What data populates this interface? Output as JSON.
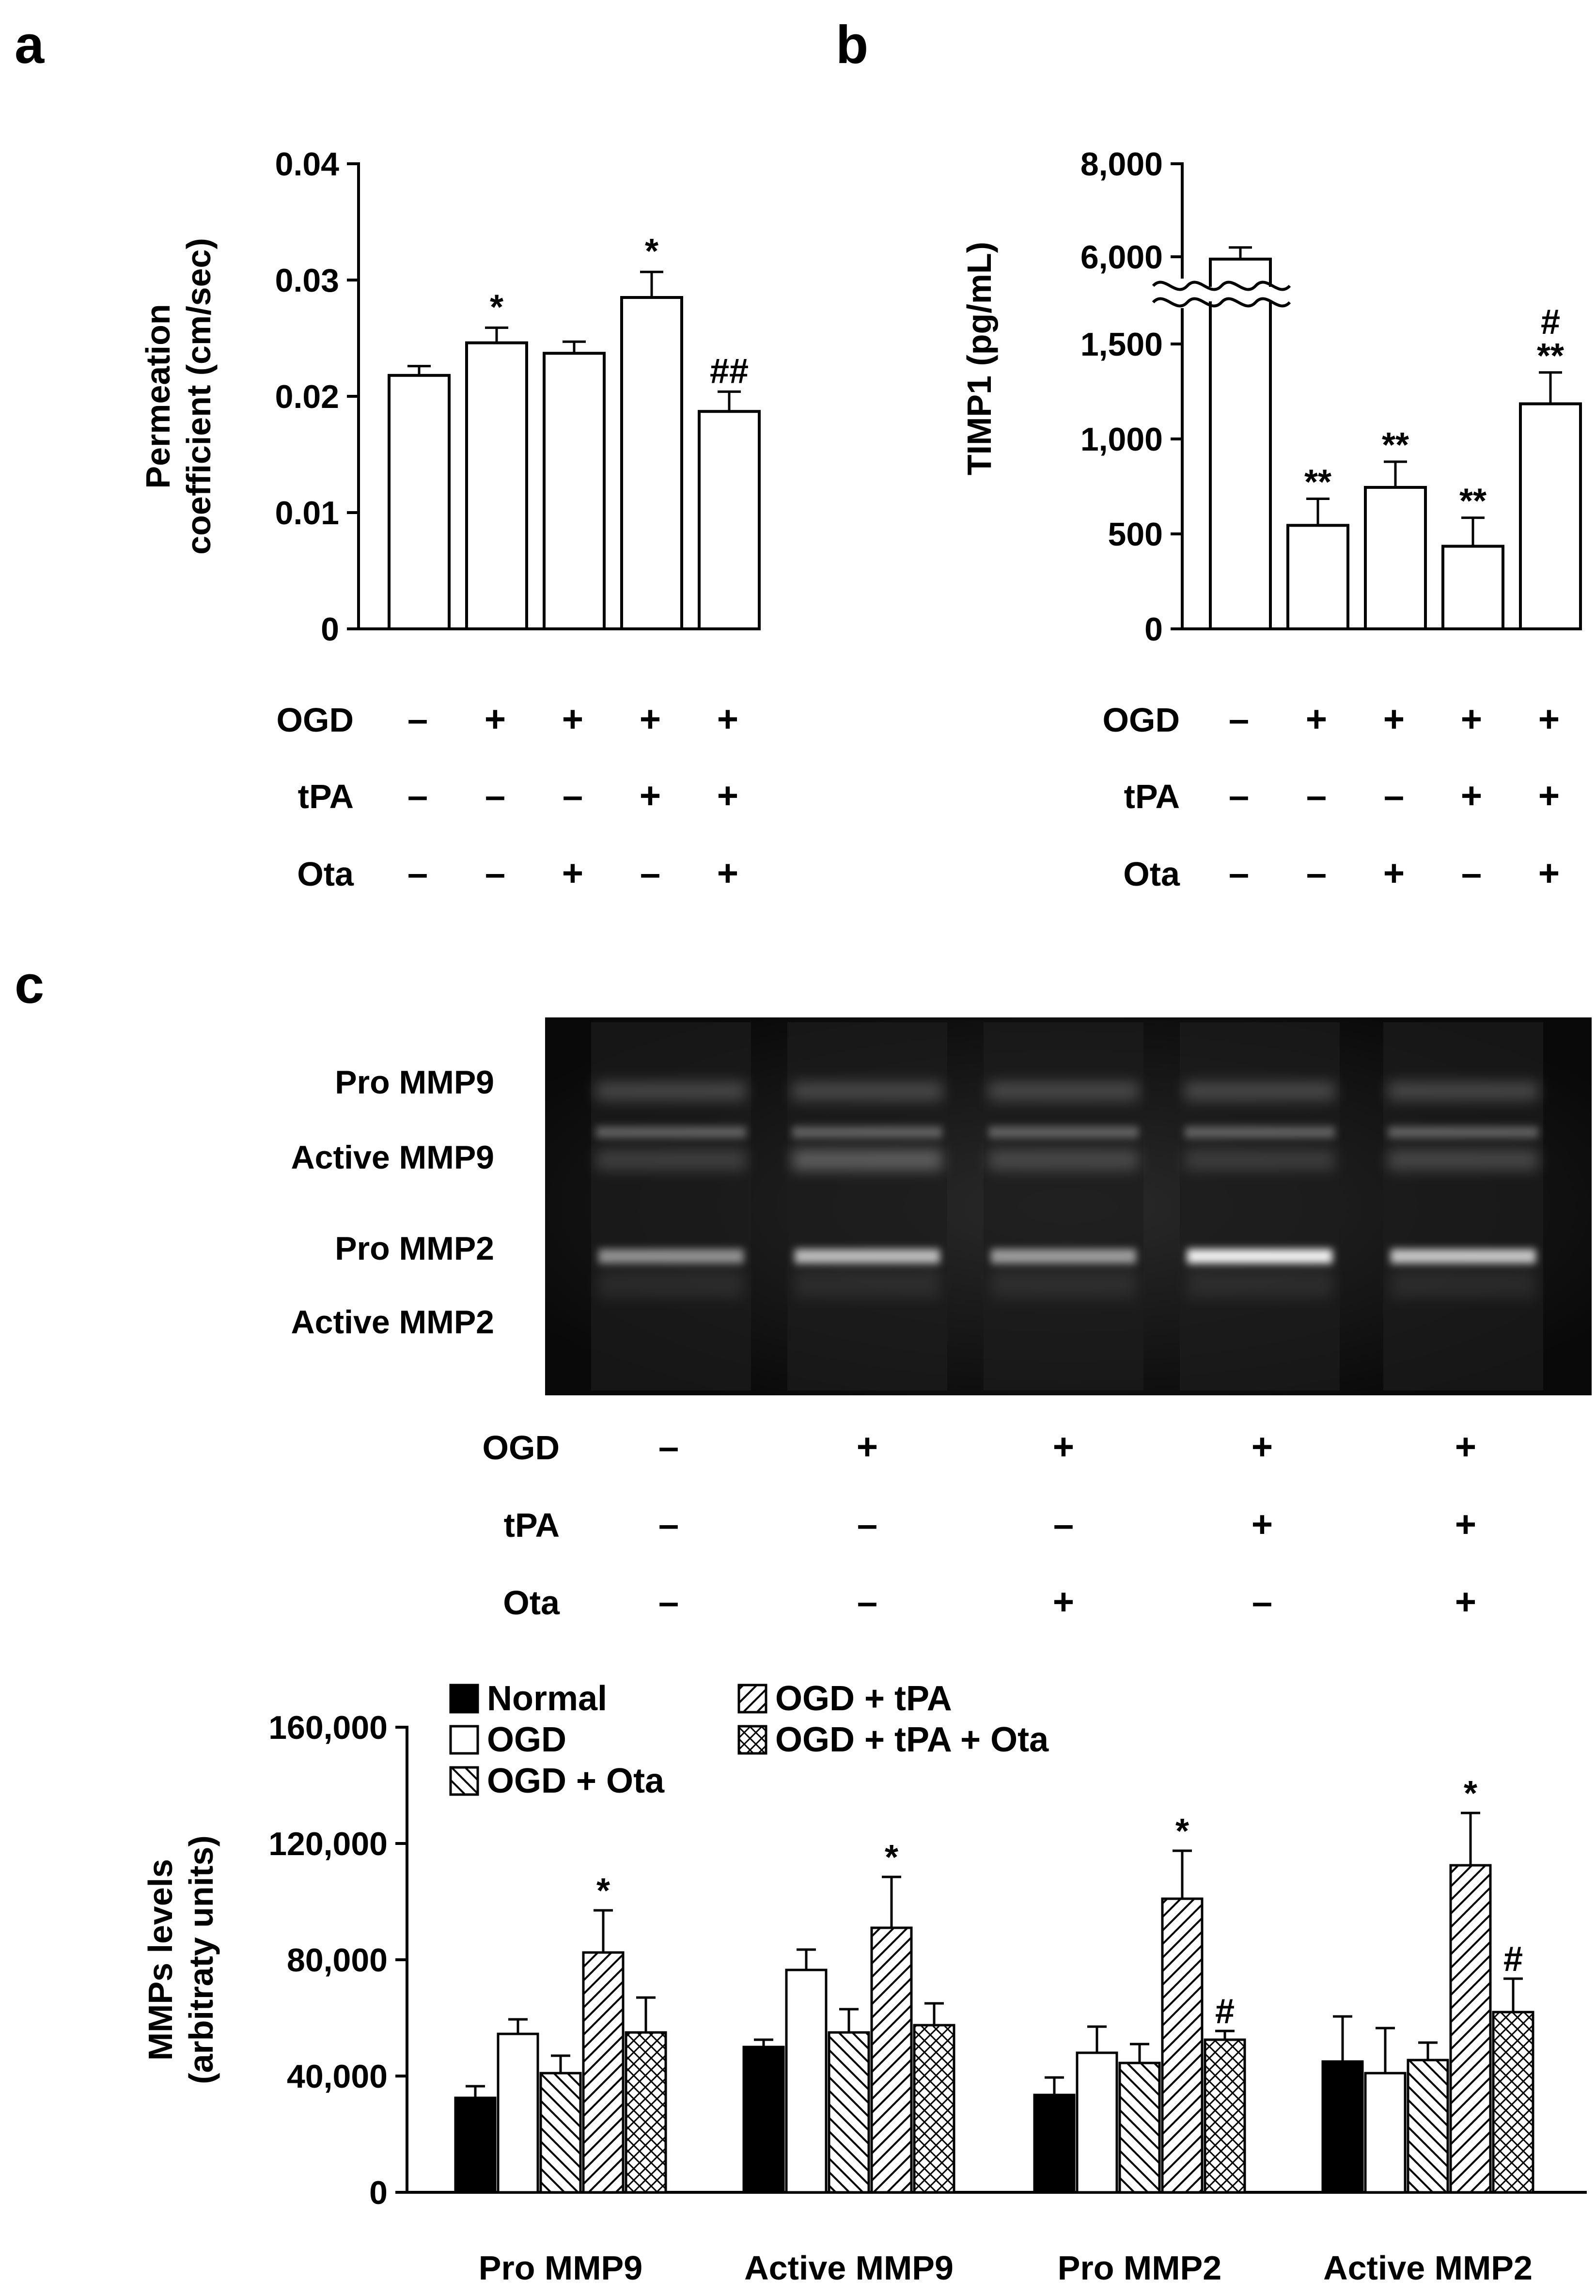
{
  "colors": {
    "ink": "#000000",
    "paper": "#ffffff",
    "gel_background": "#0b0b0b",
    "band": "#e8e8e8"
  },
  "panels": {
    "a": {
      "letter": "a"
    },
    "b": {
      "letter": "b"
    },
    "c": {
      "letter": "c"
    }
  },
  "condition_rows": {
    "labels": [
      "OGD",
      "tPA",
      "Ota"
    ],
    "signs": [
      [
        "–",
        "+",
        "+",
        "+",
        "+"
      ],
      [
        "–",
        "–",
        "–",
        "+",
        "+"
      ],
      [
        "–",
        "–",
        "+",
        "–",
        "+"
      ]
    ]
  },
  "gel": {
    "band_labels": [
      "Pro MMP9",
      "Active MMP9",
      "Pro MMP2",
      "Active MMP2"
    ],
    "lanes": 5
  },
  "chart_data": [
    {
      "panel": "a",
      "type": "bar",
      "ylabel_lines": [
        "Permeation",
        "coefficient (cm/sec)"
      ],
      "ylim": [
        0,
        0.04
      ],
      "yticks": [
        0,
        0.01,
        0.02,
        0.03,
        0.04
      ],
      "ytick_labels": [
        "0",
        "0.01",
        "0.02",
        "0.03",
        "0.04"
      ],
      "values": [
        0.0218,
        0.0246,
        0.0237,
        0.0285,
        0.0187
      ],
      "errors": [
        0.0008,
        0.0013,
        0.001,
        0.0022,
        0.0017
      ],
      "annotations": [
        "",
        "*",
        "",
        "*",
        "##"
      ],
      "fill": "open"
    },
    {
      "panel": "b",
      "type": "bar",
      "ylabel": "TIMP1 (pg/mL)",
      "axis_break": true,
      "ytick_labels": [
        "0",
        "500",
        "1,000",
        "1,500",
        "6,000",
        "8,000"
      ],
      "values": [
        5950,
        545,
        745,
        435,
        1185
      ],
      "errors": [
        250,
        140,
        135,
        150,
        165
      ],
      "annotations": [
        "",
        "**",
        "**",
        "**",
        "#|**"
      ],
      "fill": "open"
    },
    {
      "panel": "c",
      "type": "bar",
      "ylabel_lines": [
        "MMPs levels",
        "(arbitraty units)"
      ],
      "ylim": [
        0,
        160000
      ],
      "yticks": [
        0,
        40000,
        80000,
        120000,
        160000
      ],
      "ytick_labels": [
        "0",
        "40,000",
        "80,000",
        "120,000",
        "160,000"
      ],
      "categories": [
        "Pro MMP9",
        "Active MMP9",
        "Pro MMP2",
        "Active MMP2"
      ],
      "legend": {
        "placement": "top-left"
      },
      "series": [
        {
          "name": "Normal",
          "pattern": "solid",
          "values": [
            32500,
            50000,
            33500,
            45000
          ],
          "errors": [
            4000,
            2500,
            6000,
            15500
          ],
          "annotations": [
            "",
            "",
            "",
            ""
          ]
        },
        {
          "name": "OGD",
          "pattern": "open",
          "values": [
            54500,
            76500,
            48000,
            41000
          ],
          "errors": [
            5000,
            7000,
            9000,
            15500
          ],
          "annotations": [
            "",
            "",
            "",
            ""
          ]
        },
        {
          "name": "OGD + Ota",
          "pattern": "diagonal-back",
          "values": [
            41000,
            55000,
            44500,
            45500
          ],
          "errors": [
            6000,
            8000,
            6500,
            6000
          ],
          "annotations": [
            "",
            "",
            "",
            ""
          ]
        },
        {
          "name": "OGD + tPA",
          "pattern": "diagonal-forward",
          "values": [
            82500,
            91000,
            101000,
            112500
          ],
          "errors": [
            14500,
            17500,
            16500,
            18000
          ],
          "annotations": [
            "*",
            "*",
            "*",
            "*"
          ]
        },
        {
          "name": "OGD + tPA + Ota",
          "pattern": "crosshatch",
          "values": [
            55000,
            57500,
            52500,
            62000
          ],
          "errors": [
            12000,
            7500,
            3000,
            11500
          ],
          "annotations": [
            "",
            "",
            "#",
            "#"
          ]
        }
      ]
    }
  ]
}
